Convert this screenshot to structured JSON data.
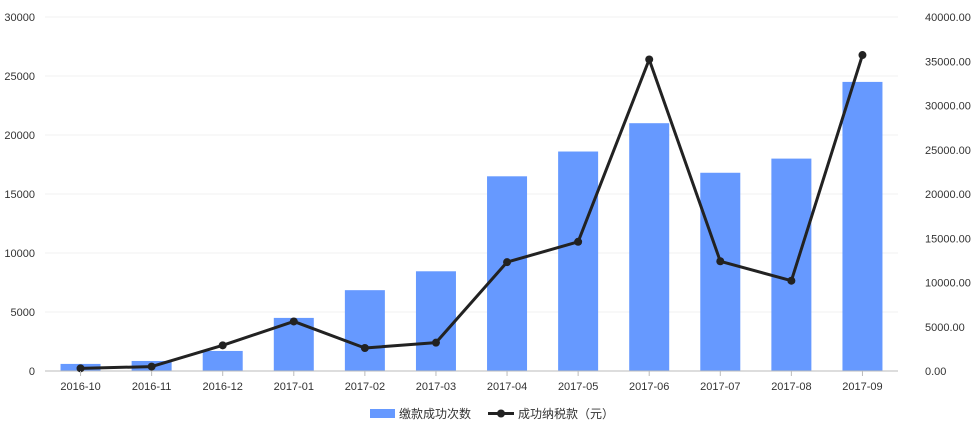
{
  "chart_data": {
    "type": "bar",
    "categories": [
      "2016-10",
      "2016-11",
      "2016-12",
      "2017-01",
      "2017-02",
      "2017-03",
      "2017-04",
      "2017-05",
      "2017-06",
      "2017-07",
      "2017-08",
      "2017-09"
    ],
    "series": [
      {
        "name": "缴款成功次数",
        "type": "bar",
        "axis": "left",
        "color": "#6699ff",
        "values": [
          600,
          850,
          1700,
          4500,
          6850,
          8450,
          16500,
          18600,
          21000,
          16800,
          18000,
          24500
        ]
      },
      {
        "name": "成功纳税款（元）",
        "type": "line",
        "axis": "right",
        "color": "#222222",
        "values": [
          300,
          500,
          2900,
          5600,
          2600,
          3200,
          12300,
          14600,
          35200,
          12400,
          10200,
          35700
        ]
      }
    ],
    "y_left": {
      "ylim": [
        0,
        30000
      ],
      "ticks": [
        "0",
        "5000",
        "10000",
        "15000",
        "20000",
        "25000",
        "30000"
      ]
    },
    "y_right": {
      "ylim": [
        0,
        40000
      ],
      "ticks": [
        "0.00",
        "5000.00",
        "10000.00",
        "15000.00",
        "20000.00",
        "25000.00",
        "30000.00",
        "35000.00",
        "40000.00"
      ]
    },
    "grid": true,
    "legend_position": "bottom-center"
  }
}
